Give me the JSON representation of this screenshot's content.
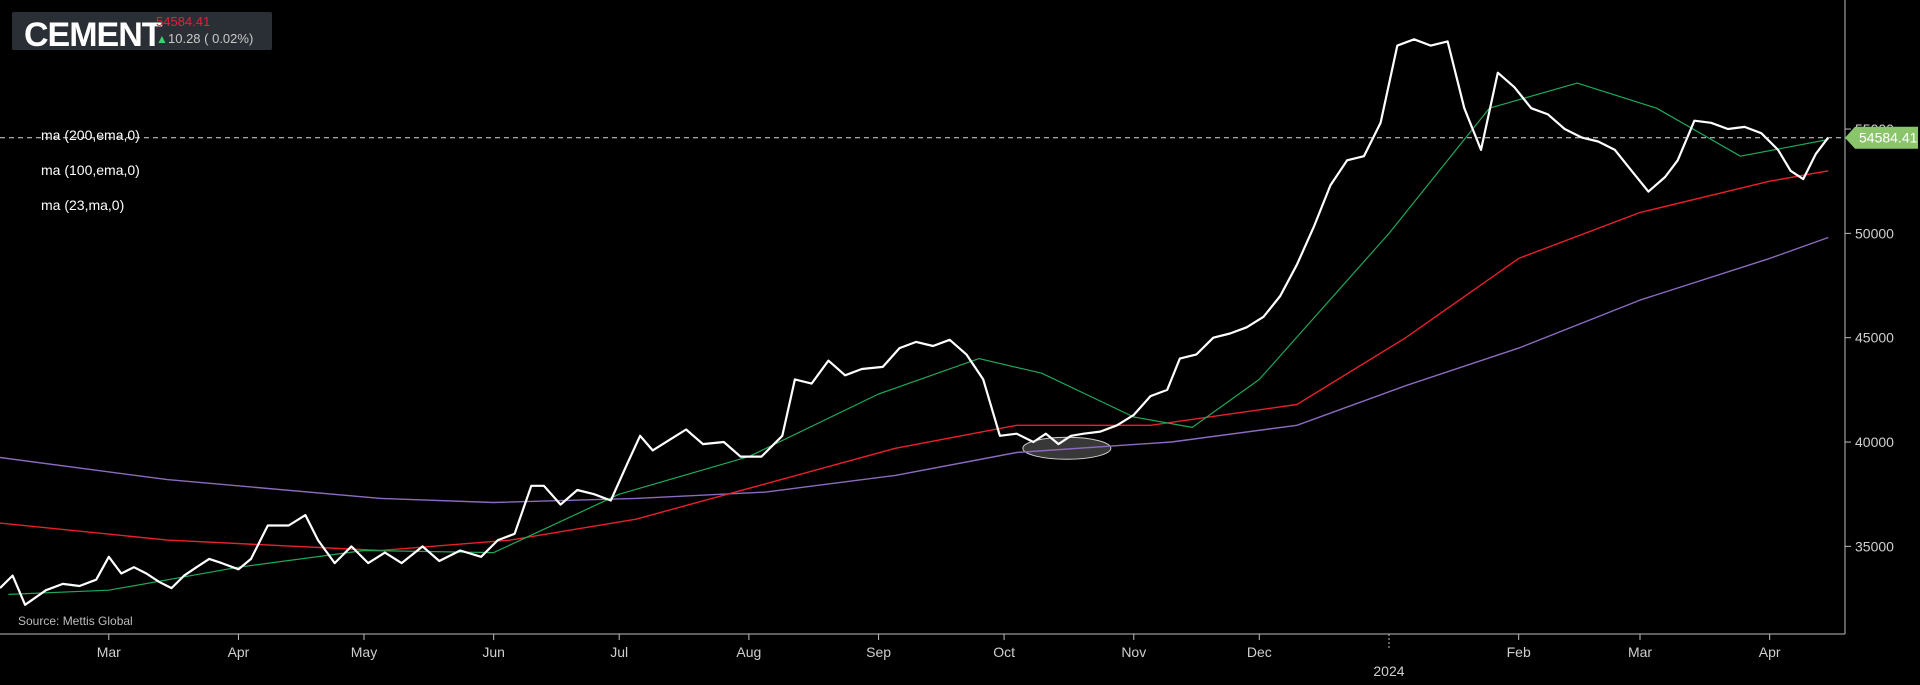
{
  "ticker": {
    "name": "CEMENT",
    "price": "54584.41",
    "change": "10.28 ( 0.02%)",
    "direction_icon": "arrow-up-icon"
  },
  "legend": [
    {
      "label": "ma (200,ema,0)",
      "color": "#8a6bbf"
    },
    {
      "label": "ma (100,ema,0)",
      "color": "#e8202a"
    },
    {
      "label": "ma (23,ma,0)",
      "color": "#1fa85a"
    }
  ],
  "source": "Source: Mettis Global",
  "last_price_label": "54584.41",
  "colors": {
    "price_line": "#ffffff",
    "ma200": "#8a6bbf",
    "ma100": "#e8202a",
    "ma23": "#1fa85a",
    "last_price_tag": "#8bc56b",
    "axis": "#cfcfcf"
  },
  "chart_data": {
    "type": "line",
    "title": "CEMENT",
    "xlabel": "",
    "ylabel": "",
    "ylim": [
      30800,
      60800
    ],
    "grid": false,
    "y_ticks": [
      "35000",
      "40000",
      "45000",
      "50000",
      "55000"
    ],
    "x_ticks": [
      "Mar",
      "Apr",
      "May",
      "Jun",
      "Jul",
      "Aug",
      "Sep",
      "Oct",
      "Nov",
      "Dec",
      "Feb",
      "Mar",
      "Apr"
    ],
    "year_label": "2024",
    "x_range": [
      "2023-02-03",
      "2024-04-19"
    ],
    "series": [
      {
        "name": "CEMENT",
        "points": [
          [
            "2023-02-03",
            33000
          ],
          [
            "2023-02-06",
            33600
          ],
          [
            "2023-02-09",
            32200
          ],
          [
            "2023-02-14",
            32900
          ],
          [
            "2023-02-18",
            33200
          ],
          [
            "2023-02-22",
            33100
          ],
          [
            "2023-02-26",
            33400
          ],
          [
            "2023-03-01",
            34500
          ],
          [
            "2023-03-04",
            33700
          ],
          [
            "2023-03-07",
            34000
          ],
          [
            "2023-03-10",
            33700
          ],
          [
            "2023-03-13",
            33300
          ],
          [
            "2023-03-16",
            33000
          ],
          [
            "2023-03-19",
            33600
          ],
          [
            "2023-03-22",
            34000
          ],
          [
            "2023-03-25",
            34400
          ],
          [
            "2023-03-28",
            34200
          ],
          [
            "2023-04-01",
            33900
          ],
          [
            "2023-04-04",
            34400
          ],
          [
            "2023-04-08",
            36000
          ],
          [
            "2023-04-13",
            36000
          ],
          [
            "2023-04-17",
            36500
          ],
          [
            "2023-04-20",
            35300
          ],
          [
            "2023-04-24",
            34200
          ],
          [
            "2023-04-28",
            35000
          ],
          [
            "2023-05-02",
            34200
          ],
          [
            "2023-05-06",
            34700
          ],
          [
            "2023-05-10",
            34200
          ],
          [
            "2023-05-15",
            35000
          ],
          [
            "2023-05-19",
            34300
          ],
          [
            "2023-05-24",
            34800
          ],
          [
            "2023-05-29",
            34500
          ],
          [
            "2023-06-02",
            35300
          ],
          [
            "2023-06-06",
            35600
          ],
          [
            "2023-06-10",
            37900
          ],
          [
            "2023-06-13",
            37900
          ],
          [
            "2023-06-17",
            37000
          ],
          [
            "2023-06-21",
            37700
          ],
          [
            "2023-06-25",
            37500
          ],
          [
            "2023-06-29",
            37200
          ],
          [
            "2023-07-03",
            39000
          ],
          [
            "2023-07-06",
            40300
          ],
          [
            "2023-07-09",
            39600
          ],
          [
            "2023-07-13",
            40100
          ],
          [
            "2023-07-17",
            40600
          ],
          [
            "2023-07-21",
            39900
          ],
          [
            "2023-07-26",
            40000
          ],
          [
            "2023-07-30",
            39300
          ],
          [
            "2023-08-04",
            39300
          ],
          [
            "2023-08-09",
            40300
          ],
          [
            "2023-08-12",
            43000
          ],
          [
            "2023-08-16",
            42800
          ],
          [
            "2023-08-20",
            43900
          ],
          [
            "2023-08-24",
            43200
          ],
          [
            "2023-08-28",
            43500
          ],
          [
            "2023-09-02",
            43600
          ],
          [
            "2023-09-06",
            44500
          ],
          [
            "2023-09-10",
            44800
          ],
          [
            "2023-09-14",
            44600
          ],
          [
            "2023-09-18",
            44900
          ],
          [
            "2023-09-22",
            44200
          ],
          [
            "2023-09-26",
            43000
          ],
          [
            "2023-09-30",
            40300
          ],
          [
            "2023-10-04",
            40400
          ],
          [
            "2023-10-08",
            40000
          ],
          [
            "2023-10-11",
            40400
          ],
          [
            "2023-10-14",
            39900
          ],
          [
            "2023-10-17",
            40300
          ],
          [
            "2023-10-20",
            40400
          ],
          [
            "2023-10-24",
            40500
          ],
          [
            "2023-10-28",
            40800
          ],
          [
            "2023-11-01",
            41300
          ],
          [
            "2023-11-05",
            42200
          ],
          [
            "2023-11-09",
            42500
          ],
          [
            "2023-11-12",
            44000
          ],
          [
            "2023-11-16",
            44200
          ],
          [
            "2023-11-20",
            45000
          ],
          [
            "2023-11-24",
            45200
          ],
          [
            "2023-11-28",
            45500
          ],
          [
            "2023-12-02",
            46000
          ],
          [
            "2023-12-06",
            47000
          ],
          [
            "2023-12-10",
            48500
          ],
          [
            "2023-12-14",
            50300
          ],
          [
            "2023-12-18",
            52300
          ],
          [
            "2023-12-22",
            53500
          ],
          [
            "2023-12-26",
            53700
          ],
          [
            "2023-12-30",
            55300
          ],
          [
            "2024-01-03",
            59000
          ],
          [
            "2024-01-07",
            59300
          ],
          [
            "2024-01-11",
            59000
          ],
          [
            "2024-01-15",
            59200
          ],
          [
            "2024-01-19",
            56000
          ],
          [
            "2024-01-23",
            54000
          ],
          [
            "2024-01-27",
            57700
          ],
          [
            "2024-01-31",
            57000
          ],
          [
            "2024-02-04",
            56000
          ],
          [
            "2024-02-08",
            55700
          ],
          [
            "2024-02-12",
            55000
          ],
          [
            "2024-02-16",
            54600
          ],
          [
            "2024-02-20",
            54400
          ],
          [
            "2024-02-24",
            54000
          ],
          [
            "2024-02-28",
            53000
          ],
          [
            "2024-03-03",
            52000
          ],
          [
            "2024-03-07",
            52700
          ],
          [
            "2024-03-10",
            53500
          ],
          [
            "2024-03-14",
            55400
          ],
          [
            "2024-03-18",
            55300
          ],
          [
            "2024-03-22",
            55000
          ],
          [
            "2024-03-26",
            55100
          ],
          [
            "2024-03-30",
            54800
          ],
          [
            "2024-04-03",
            54000
          ],
          [
            "2024-04-06",
            53000
          ],
          [
            "2024-04-09",
            52600
          ],
          [
            "2024-04-12",
            53800
          ],
          [
            "2024-04-15",
            54600
          ]
        ]
      },
      {
        "name": "ma (200,ema,0)",
        "points": [
          [
            "2023-01-25",
            39500
          ],
          [
            "2023-03-15",
            38200
          ],
          [
            "2023-05-05",
            37300
          ],
          [
            "2023-06-01",
            37100
          ],
          [
            "2023-07-05",
            37300
          ],
          [
            "2023-08-05",
            37600
          ],
          [
            "2023-09-05",
            38400
          ],
          [
            "2023-10-04",
            39500
          ],
          [
            "2023-11-10",
            40000
          ],
          [
            "2023-12-10",
            40800
          ],
          [
            "2024-01-05",
            42700
          ],
          [
            "2024-02-01",
            44500
          ],
          [
            "2024-03-01",
            46800
          ],
          [
            "2024-04-01",
            48800
          ],
          [
            "2024-04-15",
            49800
          ]
        ]
      },
      {
        "name": "ma (100,ema,0)",
        "points": [
          [
            "2023-01-25",
            36300
          ],
          [
            "2023-03-15",
            35300
          ],
          [
            "2023-05-05",
            34800
          ],
          [
            "2023-06-05",
            35300
          ],
          [
            "2023-07-05",
            36300
          ],
          [
            "2023-08-05",
            38000
          ],
          [
            "2023-09-05",
            39700
          ],
          [
            "2023-10-04",
            40800
          ],
          [
            "2023-11-05",
            40800
          ],
          [
            "2023-12-10",
            41800
          ],
          [
            "2024-01-05",
            45000
          ],
          [
            "2024-02-01",
            48800
          ],
          [
            "2024-03-01",
            51000
          ],
          [
            "2024-04-01",
            52500
          ],
          [
            "2024-04-15",
            53000
          ]
        ]
      },
      {
        "name": "ma (23,ma,0)",
        "points": [
          [
            "2023-02-05",
            32700
          ],
          [
            "2023-03-01",
            32900
          ],
          [
            "2023-04-01",
            34000
          ],
          [
            "2023-05-01",
            34800
          ],
          [
            "2023-06-01",
            34700
          ],
          [
            "2023-07-01",
            37500
          ],
          [
            "2023-08-01",
            39300
          ],
          [
            "2023-09-01",
            42300
          ],
          [
            "2023-09-25",
            44000
          ],
          [
            "2023-10-10",
            43300
          ],
          [
            "2023-11-01",
            41200
          ],
          [
            "2023-11-15",
            40700
          ],
          [
            "2023-12-01",
            43000
          ],
          [
            "2024-01-01",
            50000
          ],
          [
            "2024-01-25",
            56000
          ],
          [
            "2024-02-15",
            57200
          ],
          [
            "2024-03-05",
            56000
          ],
          [
            "2024-03-25",
            53700
          ],
          [
            "2024-04-15",
            54500
          ]
        ]
      }
    ],
    "annotations": [
      {
        "type": "ellipse",
        "center": [
          "2023-10-16",
          39700
        ],
        "label": ""
      }
    ]
  }
}
